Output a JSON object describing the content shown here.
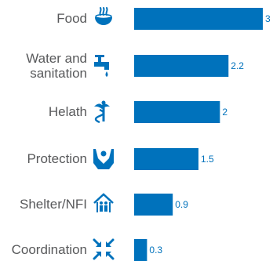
{
  "chart_data": {
    "type": "bar",
    "orientation": "horizontal",
    "categories": [
      "Food",
      "Water and sanitation",
      "Helath",
      "Protection",
      "Shelter/NFI",
      "Coordination"
    ],
    "values": [
      3,
      2.2,
      2,
      1.5,
      0.9,
      0.3
    ],
    "value_labels": [
      "3",
      "2.2",
      "2",
      "1.5",
      "0.9",
      "0.3"
    ],
    "icons": [
      "food-bowl-icon",
      "water-tap-icon",
      "health-caduceus-icon",
      "protection-hands-icon",
      "shelter-house-icon",
      "coordination-arrows-icon"
    ],
    "xlim": [
      0,
      3
    ],
    "bar_color": "#0072bc",
    "title": "",
    "xlabel": "",
    "ylabel": "",
    "grid": false,
    "legend": "none"
  }
}
